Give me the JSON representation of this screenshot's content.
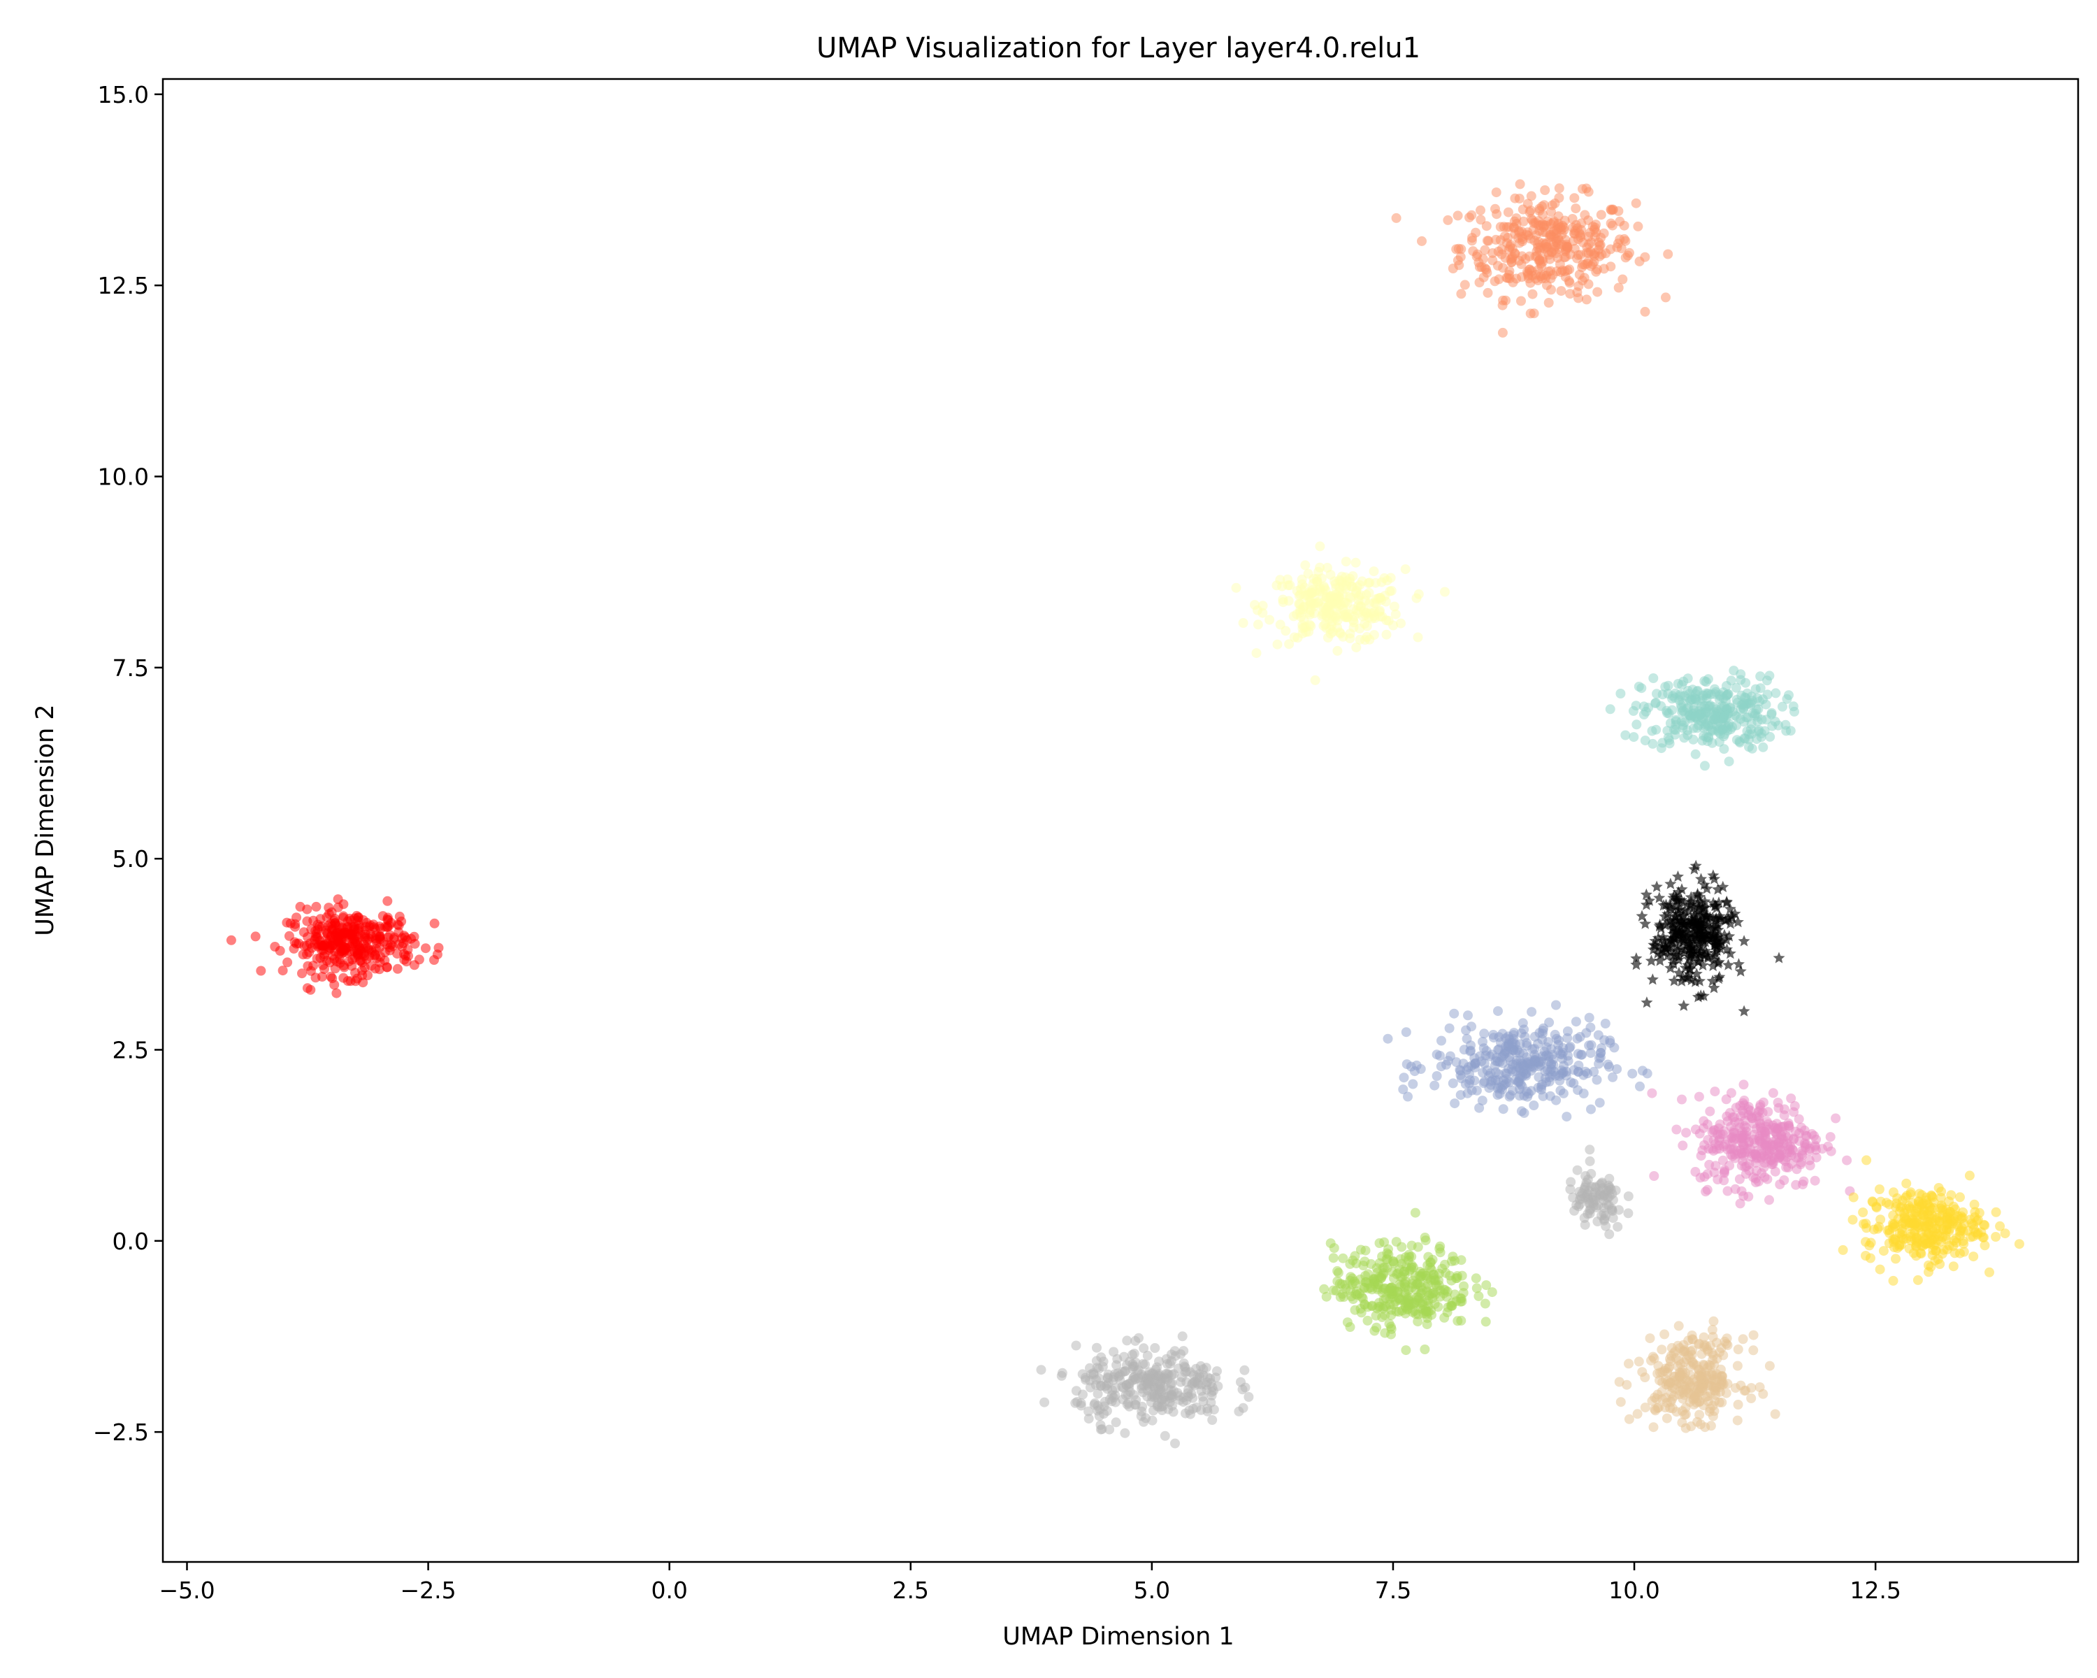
{
  "chart_data": {
    "type": "scatter",
    "title": "UMAP Visualization for Layer layer4.0.relu1",
    "xlabel": "UMAP Dimension 1",
    "ylabel": "UMAP Dimension 2",
    "xlim": [
      -5.25,
      14.6
    ],
    "ylim": [
      -4.2,
      15.2
    ],
    "xticks": [
      {
        "value": -5.0,
        "label": "−5.0"
      },
      {
        "value": -2.5,
        "label": "−2.5"
      },
      {
        "value": 0.0,
        "label": "0.0"
      },
      {
        "value": 2.5,
        "label": "2.5"
      },
      {
        "value": 5.0,
        "label": "5.0"
      },
      {
        "value": 7.5,
        "label": "7.5"
      },
      {
        "value": 10.0,
        "label": "10.0"
      },
      {
        "value": 12.5,
        "label": "12.5"
      }
    ],
    "yticks": [
      {
        "value": -2.5,
        "label": "−2.5"
      },
      {
        "value": 0.0,
        "label": "0.0"
      },
      {
        "value": 2.5,
        "label": "2.5"
      },
      {
        "value": 5.0,
        "label": "5.0"
      },
      {
        "value": 7.5,
        "label": "7.5"
      },
      {
        "value": 10.0,
        "label": "10.0"
      },
      {
        "value": 12.5,
        "label": "12.5"
      },
      {
        "value": 15.0,
        "label": "15.0"
      }
    ],
    "grid": false,
    "legend": false,
    "clusters": [
      {
        "color": "#fc8d62",
        "marker": "circle",
        "center": [
          9.1,
          13.0
        ],
        "spread": [
          0.75,
          0.55
        ],
        "points": 60
      },
      {
        "color": "#ffffb3",
        "marker": "circle",
        "center": [
          6.9,
          8.3
        ],
        "spread": [
          0.6,
          0.4
        ],
        "points": 45
      },
      {
        "color": "#8dd3c7",
        "marker": "circle",
        "center": [
          10.8,
          6.9
        ],
        "spread": [
          0.6,
          0.4
        ],
        "points": 50
      },
      {
        "color": "#ff0000",
        "marker": "circle",
        "center": [
          -3.3,
          3.9
        ],
        "spread": [
          0.55,
          0.35
        ],
        "points": 55
      },
      {
        "color": "#8da0cb",
        "marker": "circle",
        "center": [
          8.8,
          2.3
        ],
        "spread": [
          0.75,
          0.45
        ],
        "points": 55
      },
      {
        "color": "#e78ac3",
        "marker": "circle",
        "center": [
          11.3,
          1.3
        ],
        "spread": [
          0.55,
          0.5
        ],
        "points": 55
      },
      {
        "color": "#ffd92f",
        "marker": "circle",
        "center": [
          13.0,
          0.2
        ],
        "spread": [
          0.5,
          0.4
        ],
        "points": 50
      },
      {
        "color": "#a6d854",
        "marker": "circle",
        "center": [
          7.6,
          -0.6
        ],
        "spread": [
          0.6,
          0.45
        ],
        "points": 55
      },
      {
        "color": "#b3b3b3",
        "marker": "circle",
        "center": [
          5.0,
          -1.9
        ],
        "spread": [
          0.65,
          0.4
        ],
        "points": 50
      },
      {
        "color": "#b3b3b3",
        "marker": "circle",
        "center": [
          9.6,
          0.5
        ],
        "spread": [
          0.25,
          0.35
        ],
        "points": 15
      },
      {
        "color": "#e5c494",
        "marker": "circle",
        "center": [
          10.6,
          -1.8
        ],
        "spread": [
          0.45,
          0.45
        ],
        "points": 45
      },
      {
        "color": "#000000",
        "marker": "star",
        "center": [
          10.6,
          4.0
        ],
        "spread": [
          0.35,
          0.55
        ],
        "points": 55
      }
    ]
  }
}
